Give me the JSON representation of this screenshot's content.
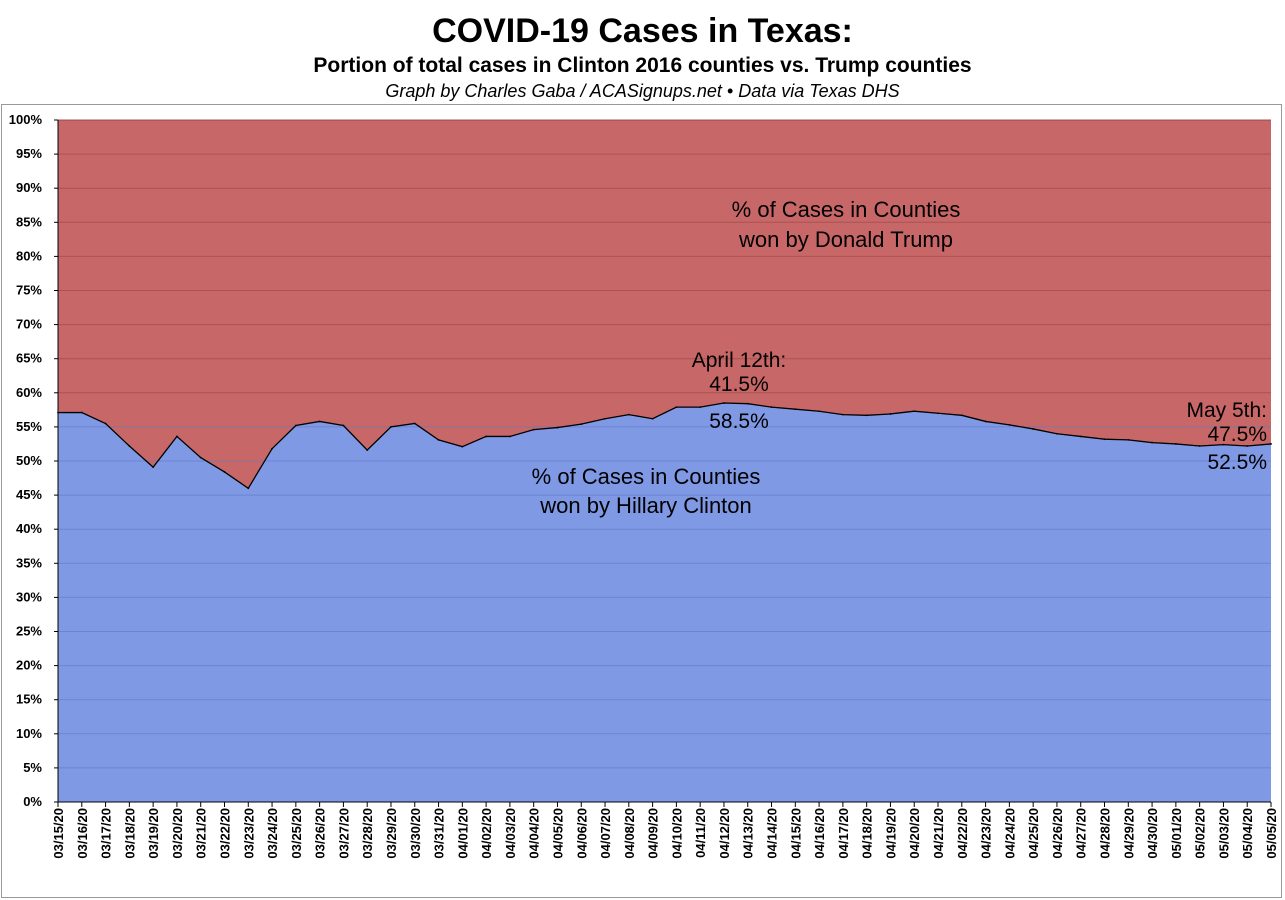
{
  "header": {
    "title": "COVID-19 Cases in Texas:",
    "subtitle": "Portion of total cases in Clinton 2016 counties vs. Trump counties",
    "credit": "Graph by Charles Gaba / ACASignups.net  •  Data via Texas DHS"
  },
  "colors": {
    "trump_area": "#c86767",
    "clinton_area": "#7f99e5",
    "line": "#000000",
    "grid_on_red": "#9a4545",
    "grid_on_blue": "#5f78c4"
  },
  "chart_data": {
    "type": "area",
    "title": "COVID-19 Cases in Texas:",
    "subtitle": "Portion of total cases in Clinton 2016 counties vs. Trump counties",
    "xlabel": "",
    "ylabel": "",
    "ylim": [
      0,
      100
    ],
    "yticks": [
      "0%",
      "5%",
      "10%",
      "15%",
      "20%",
      "25%",
      "30%",
      "35%",
      "40%",
      "45%",
      "50%",
      "55%",
      "60%",
      "65%",
      "70%",
      "75%",
      "80%",
      "85%",
      "90%",
      "95%",
      "100%"
    ],
    "grid": true,
    "stacked": true,
    "categories": [
      "03/15/20",
      "03/16/20",
      "03/17/20",
      "03/18/20",
      "03/19/20",
      "03/20/20",
      "03/21/20",
      "03/22/20",
      "03/23/20",
      "03/24/20",
      "03/25/20",
      "03/26/20",
      "03/27/20",
      "03/28/20",
      "03/29/20",
      "03/30/20",
      "03/31/20",
      "04/01/20",
      "04/02/20",
      "04/03/20",
      "04/04/20",
      "04/05/20",
      "04/06/20",
      "04/07/20",
      "04/08/20",
      "04/09/20",
      "04/10/20",
      "04/11/20",
      "04/12/20",
      "04/13/20",
      "04/14/20",
      "04/15/20",
      "04/16/20",
      "04/17/20",
      "04/18/20",
      "04/19/20",
      "04/20/20",
      "04/21/20",
      "04/22/20",
      "04/23/20",
      "04/24/20",
      "04/25/20",
      "04/26/20",
      "04/27/20",
      "04/28/20",
      "04/29/20",
      "04/30/20",
      "05/01/20",
      "05/02/20",
      "05/03/20",
      "05/04/20",
      "05/05/20"
    ],
    "series": [
      {
        "name": "% of Cases in Counties won by Hillary Clinton",
        "values": [
          57.1,
          57.1,
          55.5,
          52.2,
          49.1,
          53.6,
          50.5,
          48.4,
          46.0,
          51.8,
          55.2,
          55.8,
          55.2,
          51.6,
          55.0,
          55.5,
          53.1,
          52.1,
          53.6,
          53.6,
          54.6,
          54.9,
          55.4,
          56.2,
          56.8,
          56.2,
          57.9,
          57.9,
          58.5,
          58.4,
          57.9,
          57.6,
          57.3,
          56.8,
          56.7,
          56.9,
          57.3,
          57.0,
          56.7,
          55.8,
          55.3,
          54.7,
          54.0,
          53.6,
          53.2,
          53.1,
          52.7,
          52.5,
          52.2,
          52.4,
          52.2,
          52.5
        ]
      },
      {
        "name": "% of Cases in Counties won by Donald Trump",
        "values": [
          42.9,
          42.9,
          44.5,
          47.8,
          50.9,
          46.4,
          49.5,
          51.6,
          54.0,
          48.2,
          44.8,
          44.2,
          44.8,
          48.4,
          45.0,
          44.5,
          46.9,
          47.9,
          46.4,
          46.4,
          45.4,
          45.1,
          44.6,
          43.8,
          43.2,
          43.8,
          42.1,
          42.1,
          41.5,
          41.6,
          42.1,
          42.4,
          42.7,
          43.2,
          43.3,
          43.1,
          42.7,
          43.0,
          43.3,
          44.2,
          44.7,
          45.3,
          46.0,
          46.4,
          46.8,
          46.9,
          47.3,
          47.5,
          47.8,
          47.6,
          47.8,
          47.5
        ]
      }
    ],
    "annotations": {
      "trump_label_1": "% of Cases in Counties",
      "trump_label_2": "won by Donald Trump",
      "clinton_label_1": "% of Cases in Counties",
      "clinton_label_2": "won by Hillary Clinton",
      "april_title": "April 12th:",
      "april_trump": "41.5%",
      "april_clinton": "58.5%",
      "may_title": "May 5th:",
      "may_trump": "47.5%",
      "may_clinton": "52.5%"
    }
  }
}
